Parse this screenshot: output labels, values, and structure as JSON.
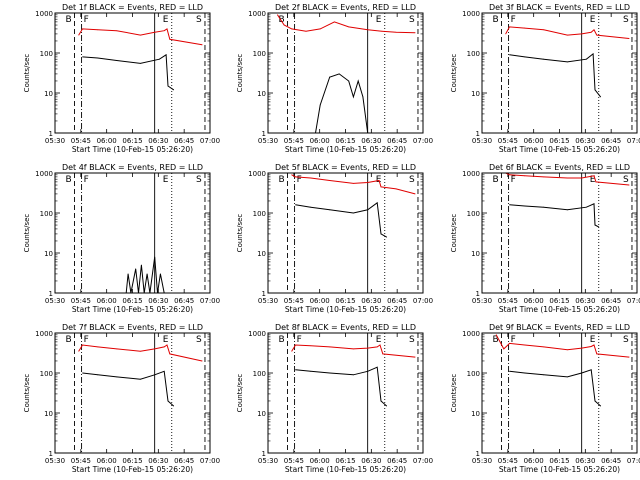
{
  "colors": {
    "events": "#000000",
    "lld": "#e00000",
    "axis": "#000000",
    "background": "#ffffff"
  },
  "xticks": [
    "05:30",
    "05:45",
    "06:00",
    "06:15",
    "06:30",
    "06:45",
    "07:00"
  ],
  "ylabel": "Counts/sec",
  "xlabel": "Start Time (10-Feb-15 05:26:20)",
  "chart_data": [
    {
      "type": "line",
      "title": "Det 1f BLACK = Events, RED = LLD",
      "ylog": true,
      "ylim": [
        1,
        1000
      ],
      "xlim": [
        5.45,
        7.083
      ],
      "region_labels": [
        "B",
        "F",
        "E",
        "S"
      ],
      "markers": {
        "dashed": [
          5.655,
          7.03
        ],
        "dashdot": [
          5.73
        ],
        "solid": [
          6.5
        ],
        "dotted": [
          6.68
        ]
      },
      "series": [
        {
          "name": "LLD",
          "points": [
            [
              5.7,
              280
            ],
            [
              5.74,
              400
            ],
            [
              5.9,
              380
            ],
            [
              6.1,
              360
            ],
            [
              6.35,
              280
            ],
            [
              6.5,
              330
            ],
            [
              6.6,
              360
            ],
            [
              6.63,
              400
            ],
            [
              6.66,
              220
            ],
            [
              7.0,
              160
            ]
          ]
        },
        {
          "name": "Events",
          "points": [
            [
              5.74,
              80
            ],
            [
              5.9,
              75
            ],
            [
              6.1,
              65
            ],
            [
              6.35,
              55
            ],
            [
              6.55,
              70
            ],
            [
              6.62,
              90
            ],
            [
              6.64,
              15
            ],
            [
              6.7,
              12
            ]
          ]
        }
      ]
    },
    {
      "type": "line",
      "title": "Det 2f BLACK = Events, RED = LLD",
      "ylog": true,
      "ylim": [
        1,
        1000
      ],
      "xlim": [
        5.45,
        7.083
      ],
      "region_labels": [
        "B",
        "E",
        "S"
      ],
      "markers": {
        "dashed": [
          5.655,
          7.03
        ],
        "dashdot": [
          5.73
        ],
        "solid": [
          6.5
        ],
        "dotted": [
          6.68
        ]
      },
      "series": [
        {
          "name": "LLD",
          "points": [
            [
              5.55,
              900
            ],
            [
              5.62,
              500
            ],
            [
              5.7,
              400
            ],
            [
              5.85,
              350
            ],
            [
              6.0,
              400
            ],
            [
              6.15,
              600
            ],
            [
              6.3,
              450
            ],
            [
              6.5,
              380
            ],
            [
              6.65,
              350
            ],
            [
              6.8,
              330
            ],
            [
              7.0,
              320
            ]
          ]
        },
        {
          "name": "Events",
          "points": [
            [
              5.95,
              1
            ],
            [
              6.0,
              5
            ],
            [
              6.1,
              25
            ],
            [
              6.2,
              30
            ],
            [
              6.3,
              20
            ],
            [
              6.35,
              8
            ],
            [
              6.4,
              20
            ],
            [
              6.45,
              8
            ],
            [
              6.5,
              1
            ]
          ]
        }
      ]
    },
    {
      "type": "line",
      "title": "Det 3f BLACK = Events, RED = LLD",
      "ylog": true,
      "ylim": [
        1,
        1000
      ],
      "xlim": [
        5.45,
        7.083
      ],
      "region_labels": [
        "B",
        "F",
        "E",
        "S"
      ],
      "markers": {
        "dashed": [
          5.655,
          7.03
        ],
        "dashdot": [
          5.73
        ],
        "solid": [
          6.5
        ],
        "dotted": [
          6.68
        ]
      },
      "series": [
        {
          "name": "LLD",
          "points": [
            [
              5.7,
              300
            ],
            [
              5.74,
              450
            ],
            [
              5.9,
              420
            ],
            [
              6.1,
              380
            ],
            [
              6.35,
              280
            ],
            [
              6.5,
              300
            ],
            [
              6.6,
              330
            ],
            [
              6.63,
              380
            ],
            [
              6.66,
              280
            ],
            [
              7.0,
              230
            ]
          ]
        },
        {
          "name": "Events",
          "points": [
            [
              5.74,
              90
            ],
            [
              5.9,
              80
            ],
            [
              6.1,
              70
            ],
            [
              6.35,
              60
            ],
            [
              6.55,
              70
            ],
            [
              6.62,
              95
            ],
            [
              6.64,
              12
            ],
            [
              6.7,
              8
            ]
          ]
        }
      ]
    },
    {
      "type": "line",
      "title": "Det 4f BLACK = Events, RED = LLD",
      "ylog": true,
      "ylim": [
        1,
        1000
      ],
      "xlim": [
        5.45,
        7.083
      ],
      "region_labels": [
        "B",
        "F",
        "E",
        "S"
      ],
      "markers": {
        "dashed": [
          5.655,
          7.03
        ],
        "dashdot": [
          5.73
        ],
        "solid": [
          6.5
        ],
        "dotted": [
          6.68
        ]
      },
      "series": [
        {
          "name": "Events",
          "points": [
            [
              6.2,
              1
            ],
            [
              6.22,
              3
            ],
            [
              6.25,
              1
            ],
            [
              6.3,
              4
            ],
            [
              6.33,
              1
            ],
            [
              6.36,
              5
            ],
            [
              6.39,
              1
            ],
            [
              6.42,
              3
            ],
            [
              6.45,
              1
            ],
            [
              6.5,
              8
            ],
            [
              6.53,
              1
            ],
            [
              6.56,
              3
            ],
            [
              6.6,
              1
            ]
          ]
        }
      ]
    },
    {
      "type": "line",
      "title": "Det 5f BLACK = Events, RED = LLD",
      "ylog": true,
      "ylim": [
        1,
        1000
      ],
      "xlim": [
        5.45,
        7.083
      ],
      "region_labels": [
        "B",
        "F",
        "E",
        "S"
      ],
      "markers": {
        "dashed": [
          5.655,
          7.03
        ],
        "dashdot": [
          5.73
        ],
        "solid": [
          6.5
        ],
        "dotted": [
          6.68
        ]
      },
      "series": [
        {
          "name": "LLD",
          "points": [
            [
              5.7,
              900
            ],
            [
              5.74,
              800
            ],
            [
              5.9,
              750
            ],
            [
              6.1,
              650
            ],
            [
              6.35,
              550
            ],
            [
              6.5,
              580
            ],
            [
              6.62,
              650
            ],
            [
              6.64,
              450
            ],
            [
              6.8,
              400
            ],
            [
              7.0,
              300
            ]
          ]
        },
        {
          "name": "Events",
          "points": [
            [
              5.74,
              160
            ],
            [
              5.9,
              140
            ],
            [
              6.1,
              120
            ],
            [
              6.35,
              100
            ],
            [
              6.5,
              120
            ],
            [
              6.6,
              180
            ],
            [
              6.64,
              30
            ],
            [
              6.7,
              25
            ]
          ]
        }
      ]
    },
    {
      "type": "line",
      "title": "Det 6f BLACK = Events, RED = LLD",
      "ylog": true,
      "ylim": [
        1,
        1000
      ],
      "xlim": [
        5.45,
        7.083
      ],
      "region_labels": [
        "B",
        "F",
        "E",
        "S"
      ],
      "markers": {
        "dashed": [
          5.655,
          7.03
        ],
        "dashdot": [
          5.73
        ],
        "solid": [
          6.5
        ],
        "dotted": [
          6.68
        ]
      },
      "series": [
        {
          "name": "LLD",
          "points": [
            [
              5.7,
              1000
            ],
            [
              5.74,
              900
            ],
            [
              5.9,
              850
            ],
            [
              6.1,
              800
            ],
            [
              6.35,
              750
            ],
            [
              6.5,
              750
            ],
            [
              6.63,
              850
            ],
            [
              6.65,
              600
            ],
            [
              7.0,
              500
            ]
          ]
        },
        {
          "name": "Events",
          "points": [
            [
              5.74,
              160
            ],
            [
              5.9,
              150
            ],
            [
              6.1,
              140
            ],
            [
              6.35,
              120
            ],
            [
              6.55,
              140
            ],
            [
              6.63,
              170
            ],
            [
              6.64,
              50
            ],
            [
              6.68,
              45
            ]
          ]
        }
      ]
    },
    {
      "type": "line",
      "title": "Det 7f BLACK = Events, RED = LLD",
      "ylog": true,
      "ylim": [
        1,
        1000
      ],
      "xlim": [
        5.45,
        7.083
      ],
      "region_labels": [
        "B",
        "F",
        "E",
        "S"
      ],
      "markers": {
        "dashed": [
          5.655,
          7.03
        ],
        "dashdot": [
          5.73
        ],
        "solid": [
          6.5
        ],
        "dotted": [
          6.68
        ]
      },
      "series": [
        {
          "name": "LLD",
          "points": [
            [
              5.7,
              350
            ],
            [
              5.74,
              500
            ],
            [
              5.9,
              450
            ],
            [
              6.1,
              400
            ],
            [
              6.35,
              350
            ],
            [
              6.5,
              400
            ],
            [
              6.6,
              450
            ],
            [
              6.63,
              500
            ],
            [
              6.66,
              300
            ],
            [
              7.0,
              200
            ]
          ]
        },
        {
          "name": "Events",
          "points": [
            [
              5.74,
              100
            ],
            [
              5.9,
              90
            ],
            [
              6.1,
              80
            ],
            [
              6.35,
              70
            ],
            [
              6.5,
              90
            ],
            [
              6.6,
              110
            ],
            [
              6.64,
              20
            ],
            [
              6.7,
              15
            ]
          ]
        }
      ]
    },
    {
      "type": "line",
      "title": "Det 8f BLACK = Events, RED = LLD",
      "ylog": true,
      "ylim": [
        1,
        1000
      ],
      "xlim": [
        5.45,
        7.083
      ],
      "region_labels": [
        "B",
        "F",
        "E",
        "S"
      ],
      "markers": {
        "dashed": [
          5.655,
          7.03
        ],
        "dashdot": [
          5.73
        ],
        "solid": [
          6.5
        ],
        "dotted": [
          6.68
        ]
      },
      "series": [
        {
          "name": "LLD",
          "points": [
            [
              5.7,
              350
            ],
            [
              5.74,
              500
            ],
            [
              5.9,
              480
            ],
            [
              6.1,
              450
            ],
            [
              6.35,
              400
            ],
            [
              6.5,
              420
            ],
            [
              6.6,
              450
            ],
            [
              6.63,
              500
            ],
            [
              6.66,
              300
            ],
            [
              7.0,
              250
            ]
          ]
        },
        {
          "name": "Events",
          "points": [
            [
              5.74,
              120
            ],
            [
              5.9,
              110
            ],
            [
              6.1,
              100
            ],
            [
              6.35,
              90
            ],
            [
              6.5,
              110
            ],
            [
              6.6,
              140
            ],
            [
              6.64,
              20
            ],
            [
              6.7,
              15
            ]
          ]
        }
      ]
    },
    {
      "type": "line",
      "title": "Det 9f BLACK = Events, RED = LLD",
      "ylog": true,
      "ylim": [
        1,
        1000
      ],
      "xlim": [
        5.45,
        7.083
      ],
      "region_labels": [
        "B",
        "F",
        "E",
        "S"
      ],
      "markers": {
        "dashed": [
          5.655,
          7.03
        ],
        "dashdot": [
          5.73
        ],
        "solid": [
          6.5
        ],
        "dotted": [
          6.68
        ]
      },
      "series": [
        {
          "name": "LLD",
          "points": [
            [
              5.6,
              900
            ],
            [
              5.68,
              400
            ],
            [
              5.74,
              550
            ],
            [
              5.9,
              500
            ],
            [
              6.1,
              450
            ],
            [
              6.35,
              380
            ],
            [
              6.5,
              420
            ],
            [
              6.6,
              460
            ],
            [
              6.63,
              500
            ],
            [
              6.66,
              300
            ],
            [
              7.0,
              250
            ]
          ]
        },
        {
          "name": "Events",
          "points": [
            [
              5.74,
              110
            ],
            [
              5.9,
              100
            ],
            [
              6.1,
              90
            ],
            [
              6.35,
              80
            ],
            [
              6.5,
              100
            ],
            [
              6.6,
              120
            ],
            [
              6.64,
              20
            ],
            [
              6.7,
              15
            ]
          ]
        }
      ]
    }
  ]
}
